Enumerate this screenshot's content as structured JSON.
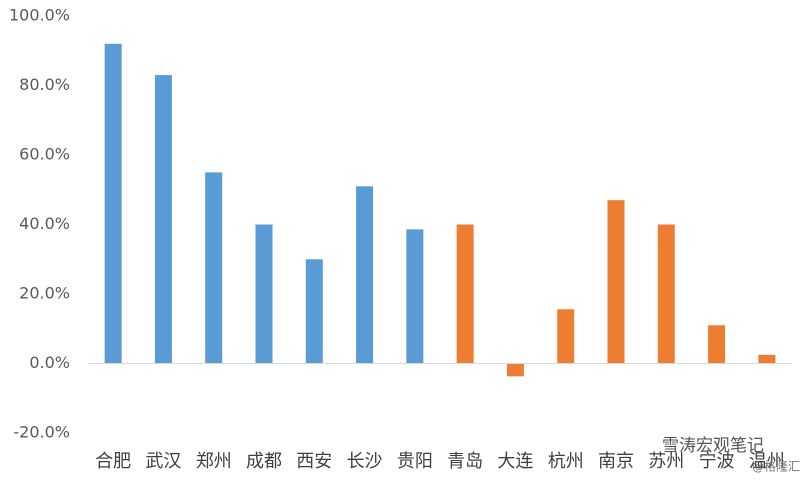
{
  "chart_data": {
    "type": "bar",
    "categories": [
      "合肥",
      "武汉",
      "郑州",
      "成都",
      "西安",
      "长沙",
      "贵阳",
      "青岛",
      "大连",
      "杭州",
      "南京",
      "苏州",
      "宁波",
      "温州"
    ],
    "values": [
      92,
      83,
      55,
      40,
      30,
      51,
      38.6,
      40,
      -3.7,
      15.6,
      47,
      40,
      11,
      2.5
    ],
    "colors": [
      "#5b9bd5",
      "#5b9bd5",
      "#5b9bd5",
      "#5b9bd5",
      "#5b9bd5",
      "#5b9bd5",
      "#5b9bd5",
      "#ed7d31",
      "#ed7d31",
      "#ed7d31",
      "#ed7d31",
      "#ed7d31",
      "#ed7d31",
      "#ed7d31"
    ],
    "ylim": [
      -20,
      100
    ],
    "yticks": [
      {
        "value": -20,
        "label": "-20.0%"
      },
      {
        "value": 0,
        "label": "0.0%"
      },
      {
        "value": 20,
        "label": "20.0%"
      },
      {
        "value": 40,
        "label": "40.0%"
      },
      {
        "value": 60,
        "label": "60.0%"
      },
      {
        "value": 80,
        "label": "80.0%"
      },
      {
        "value": 100,
        "label": "100.0%"
      }
    ],
    "grid": false,
    "watermark": [
      "雪涛宏观笔记",
      "@格隆汇"
    ]
  }
}
